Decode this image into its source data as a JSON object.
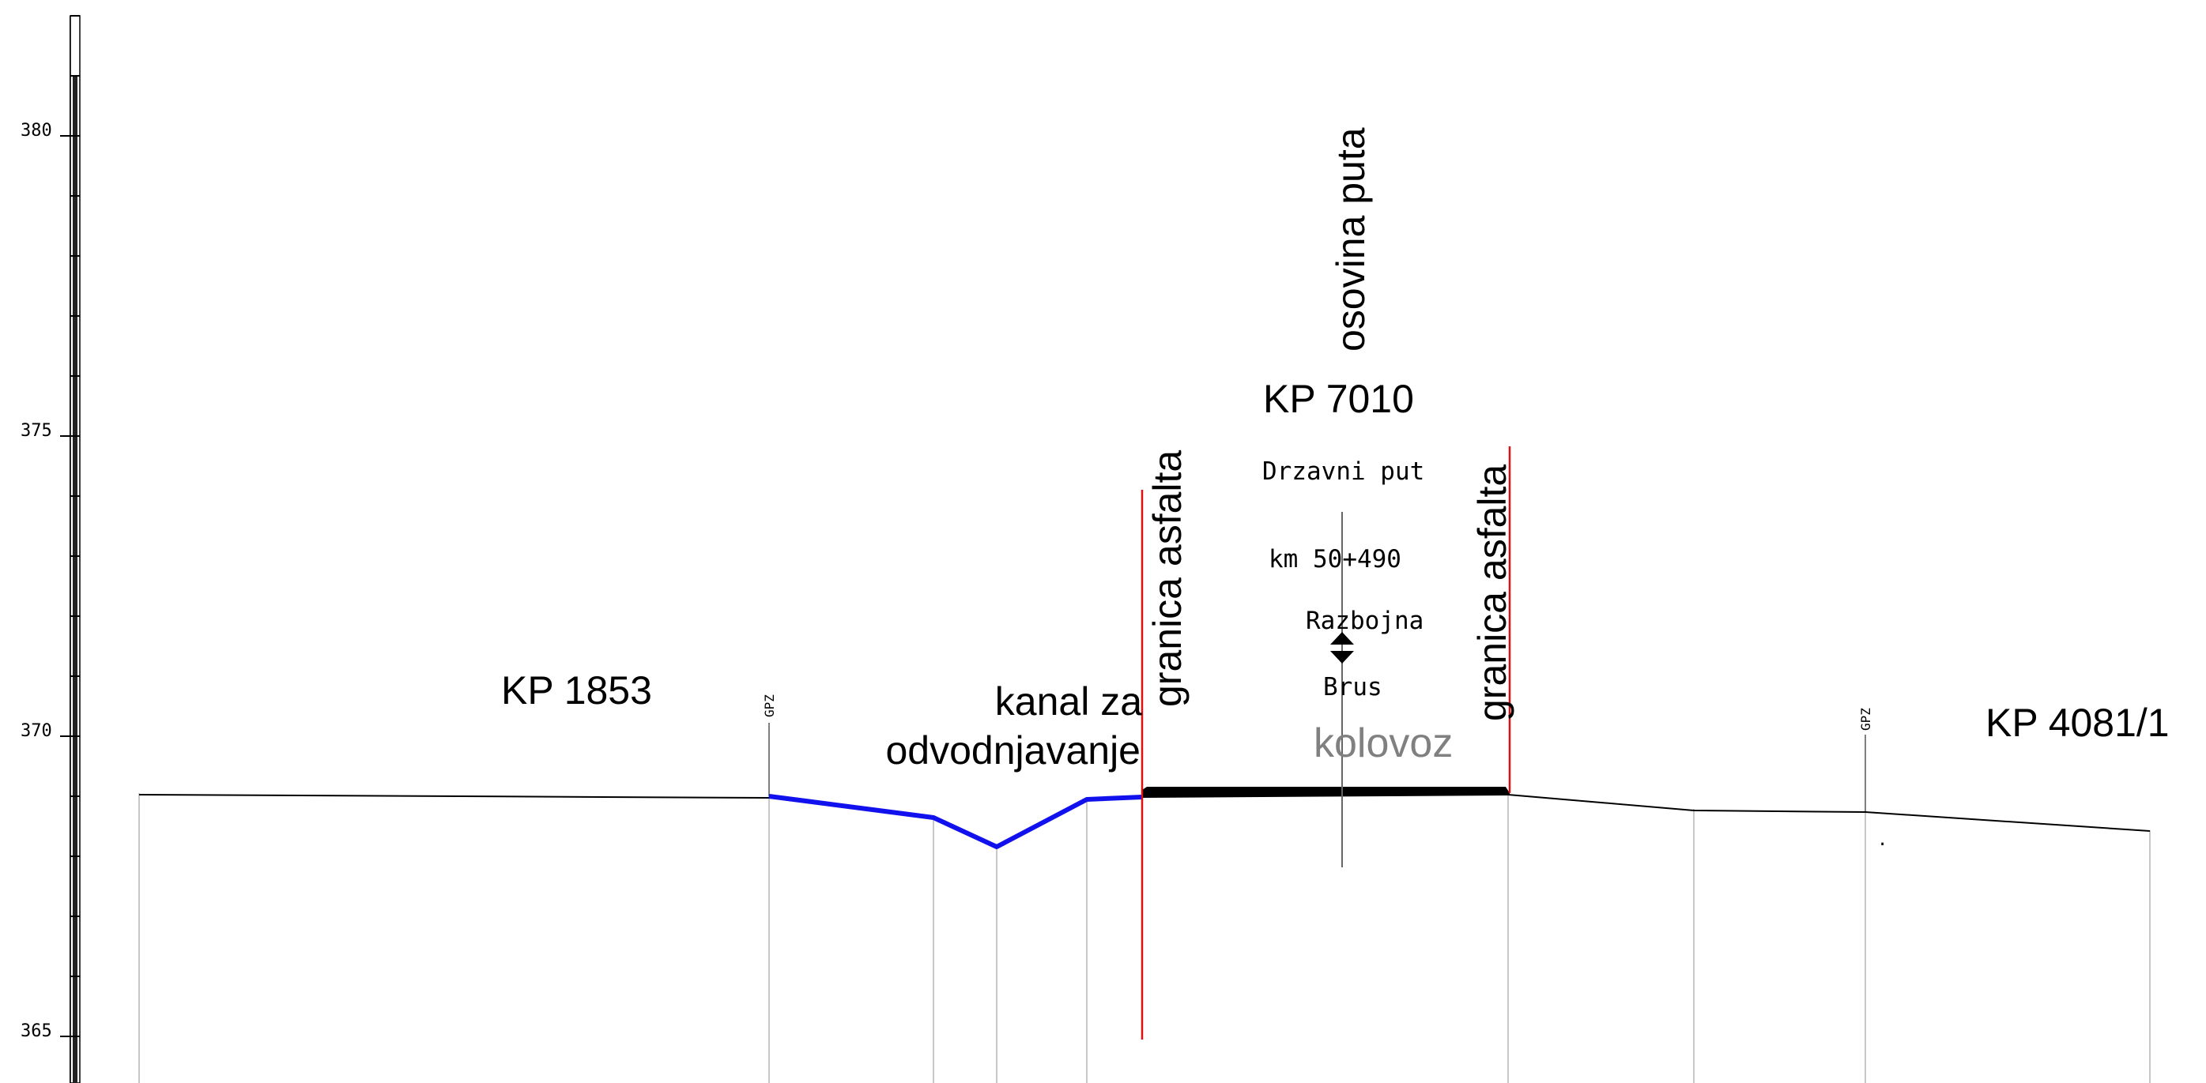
{
  "axis": {
    "tick_labels": [
      "380",
      "375",
      "370",
      "365"
    ]
  },
  "labels": {
    "kp_left": "KP 1853",
    "kp_center": "KP 7010",
    "kp_right": "KP 4081/1",
    "road_axis": "osovina puta",
    "asphalt_border_left": "granica asfalta",
    "asphalt_border_right": "granica asfalta",
    "canal_line1": "kanal za",
    "canal_line2": "odvodnjavanje",
    "road_type": "Drzavni  put",
    "chainage": "km  50+490",
    "direction_top": "Razbojna",
    "direction_bottom": "Brus",
    "carriageway": "kolovoz",
    "gpz_left": "GPZ",
    "gpz_right": "GPZ",
    "dot_mark": "."
  },
  "colors": {
    "ground_line": "#000000",
    "canal": "#1111ee",
    "asphalt": "#000000",
    "asphalt_border": "#dd1111",
    "vertical_guides": "#c8c8c8",
    "carriageway_text": "#808080"
  }
}
